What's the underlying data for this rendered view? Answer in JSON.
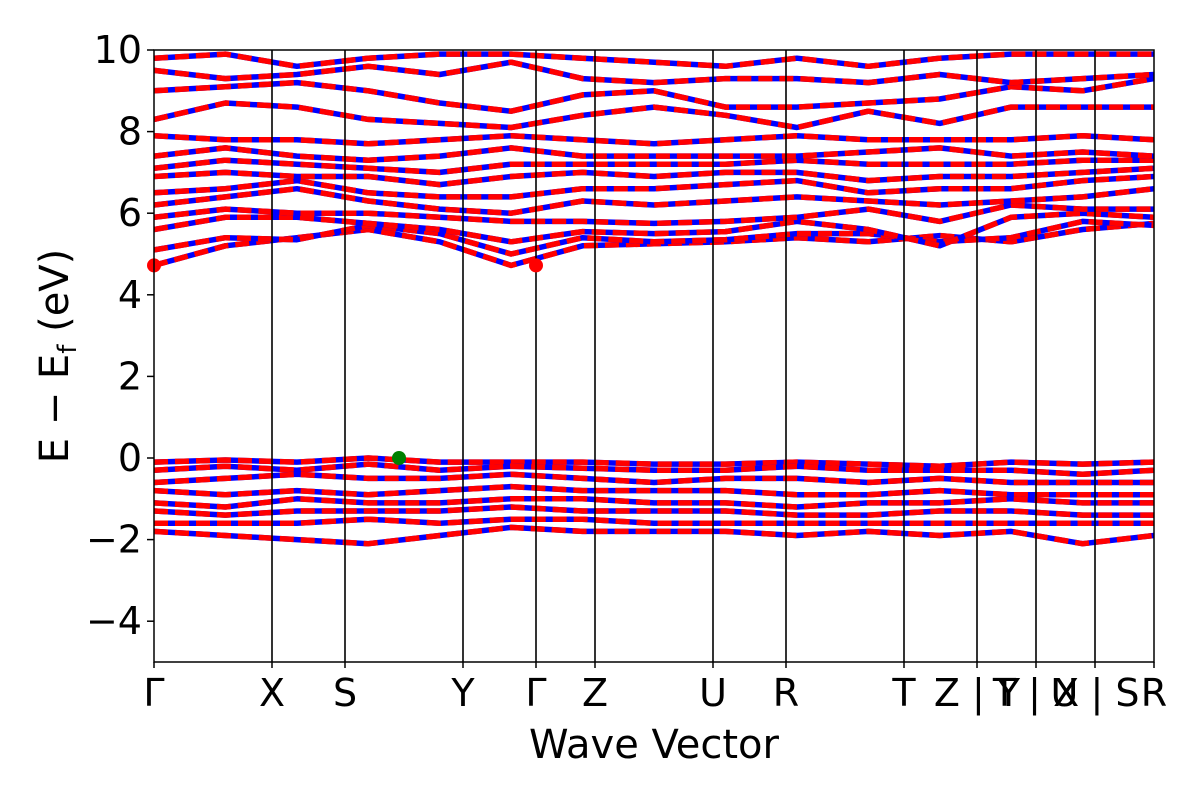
{
  "chart_data": {
    "type": "line",
    "xlabel": "Wave Vector",
    "ylabel": "E − E",
    "ylabel_sub": "f",
    "ylabel_unit": " (eV)",
    "ylim": [
      -5,
      10
    ],
    "yticks": [
      -4,
      -2,
      0,
      2,
      4,
      6,
      8,
      10
    ],
    "ytick_labels": [
      "−4",
      "−2",
      "0",
      "2",
      "4",
      "6",
      "8",
      "10"
    ],
    "grid": false,
    "kpath": [
      {
        "label": "Γ",
        "x": 0.0
      },
      {
        "label": "X",
        "x": 0.118
      },
      {
        "label": "S",
        "x": 0.191
      },
      {
        "label": "Y",
        "x": 0.309
      },
      {
        "label": "Γ",
        "x": 0.382
      },
      {
        "label": "Z",
        "x": 0.441
      },
      {
        "label": "U",
        "x": 0.559
      },
      {
        "label": "R",
        "x": 0.632
      },
      {
        "label": "T",
        "x": 0.75
      },
      {
        "label": "Z | Y",
        "x": 0.823
      },
      {
        "label": "T | X",
        "x": 0.882
      },
      {
        "label": "U | S",
        "x": 0.941
      },
      {
        "label": "R",
        "x": 1.0
      }
    ],
    "colors": {
      "spin_up": "#ff0000",
      "spin_down": "#0000ff",
      "vbm": "#008000",
      "cbm": "#ff0000",
      "kline": "#000000"
    },
    "cbm_points": [
      {
        "x": 0.0,
        "y": 4.72
      },
      {
        "x": 0.382,
        "y": 4.72
      }
    ],
    "vbm_points": [
      {
        "x": 0.245,
        "y": 0.0
      }
    ],
    "bands": [
      {
        "name": "",
        "values": [
          4.72,
          5.2,
          5.4,
          5.6,
          5.3,
          4.72,
          5.2,
          5.25,
          5.3,
          5.4,
          5.3,
          5.45,
          5.3,
          5.6,
          5.75
        ]
      },
      {
        "name": "",
        "values": [
          5.1,
          5.4,
          5.35,
          5.7,
          5.5,
          5.0,
          5.4,
          5.3,
          5.35,
          5.5,
          5.5,
          5.3,
          5.4,
          5.8,
          5.7
        ]
      },
      {
        "name": "",
        "values": [
          5.6,
          5.9,
          5.9,
          5.75,
          5.6,
          5.3,
          5.55,
          5.5,
          5.55,
          5.8,
          5.6,
          5.2,
          5.9,
          6.0,
          5.9
        ]
      },
      {
        "name": "",
        "values": [
          5.9,
          6.1,
          6.0,
          6.0,
          5.9,
          5.8,
          5.8,
          5.75,
          5.8,
          5.9,
          6.1,
          5.8,
          6.2,
          6.1,
          6.1
        ]
      },
      {
        "name": "",
        "values": [
          6.2,
          6.4,
          6.6,
          6.3,
          6.1,
          6.0,
          6.3,
          6.2,
          6.3,
          6.4,
          6.3,
          6.2,
          6.3,
          6.4,
          6.6
        ]
      },
      {
        "name": "",
        "values": [
          6.5,
          6.6,
          6.8,
          6.5,
          6.4,
          6.4,
          6.6,
          6.6,
          6.7,
          6.8,
          6.5,
          6.6,
          6.6,
          6.8,
          6.9
        ]
      },
      {
        "name": "",
        "values": [
          6.9,
          7.0,
          6.9,
          6.9,
          6.7,
          6.9,
          7.0,
          6.9,
          7.0,
          7.0,
          6.8,
          6.9,
          6.9,
          7.0,
          7.1
        ]
      },
      {
        "name": "",
        "values": [
          7.1,
          7.3,
          7.2,
          7.1,
          7.0,
          7.2,
          7.2,
          7.2,
          7.2,
          7.3,
          7.2,
          7.2,
          7.2,
          7.3,
          7.3
        ]
      },
      {
        "name": "",
        "values": [
          7.4,
          7.6,
          7.4,
          7.3,
          7.4,
          7.6,
          7.4,
          7.4,
          7.4,
          7.4,
          7.5,
          7.6,
          7.4,
          7.5,
          7.4
        ]
      },
      {
        "name": "",
        "values": [
          7.9,
          7.8,
          7.8,
          7.7,
          7.8,
          7.9,
          7.8,
          7.7,
          7.8,
          7.9,
          7.8,
          7.8,
          7.8,
          7.9,
          7.8
        ]
      },
      {
        "name": "",
        "values": [
          8.3,
          8.7,
          8.6,
          8.3,
          8.2,
          8.1,
          8.4,
          8.6,
          8.4,
          8.1,
          8.5,
          8.2,
          8.6,
          8.6,
          8.6
        ]
      },
      {
        "name": "",
        "values": [
          9.0,
          9.1,
          9.2,
          9.0,
          8.7,
          8.5,
          8.9,
          9.0,
          8.6,
          8.6,
          8.7,
          8.8,
          9.1,
          9.0,
          9.3
        ]
      },
      {
        "name": "",
        "values": [
          9.5,
          9.3,
          9.4,
          9.6,
          9.4,
          9.7,
          9.3,
          9.2,
          9.3,
          9.3,
          9.2,
          9.4,
          9.2,
          9.3,
          9.4
        ]
      },
      {
        "name": "",
        "values": [
          9.8,
          9.9,
          9.6,
          9.8,
          9.9,
          9.9,
          9.8,
          9.7,
          9.6,
          9.8,
          9.6,
          9.8,
          9.9,
          9.9,
          9.9
        ]
      },
      {
        "name": "",
        "values": [
          -0.1,
          -0.05,
          -0.1,
          0.0,
          -0.1,
          -0.1,
          -0.1,
          -0.15,
          -0.15,
          -0.1,
          -0.15,
          -0.2,
          -0.1,
          -0.15,
          -0.1
        ]
      },
      {
        "name": "",
        "values": [
          -0.3,
          -0.2,
          -0.3,
          -0.15,
          -0.3,
          -0.2,
          -0.25,
          -0.3,
          -0.3,
          -0.2,
          -0.3,
          -0.3,
          -0.3,
          -0.4,
          -0.3
        ]
      },
      {
        "name": "",
        "values": [
          -0.6,
          -0.5,
          -0.4,
          -0.5,
          -0.5,
          -0.4,
          -0.5,
          -0.6,
          -0.5,
          -0.5,
          -0.6,
          -0.5,
          -0.6,
          -0.6,
          -0.6
        ]
      },
      {
        "name": "",
        "values": [
          -0.8,
          -0.9,
          -0.8,
          -0.9,
          -0.8,
          -0.7,
          -0.8,
          -0.8,
          -0.8,
          -0.9,
          -0.9,
          -0.8,
          -0.9,
          -0.9,
          -0.9
        ]
      },
      {
        "name": "",
        "values": [
          -1.1,
          -1.2,
          -1.0,
          -1.1,
          -1.1,
          -1.0,
          -1.0,
          -1.1,
          -1.1,
          -1.2,
          -1.1,
          -1.1,
          -1.0,
          -1.1,
          -1.1
        ]
      },
      {
        "name": "",
        "values": [
          -1.3,
          -1.4,
          -1.3,
          -1.3,
          -1.3,
          -1.2,
          -1.3,
          -1.3,
          -1.3,
          -1.4,
          -1.4,
          -1.3,
          -1.3,
          -1.4,
          -1.4
        ]
      },
      {
        "name": "",
        "values": [
          -1.6,
          -1.6,
          -1.6,
          -1.5,
          -1.6,
          -1.5,
          -1.5,
          -1.6,
          -1.6,
          -1.6,
          -1.6,
          -1.6,
          -1.6,
          -1.6,
          -1.6
        ]
      },
      {
        "name": "",
        "values": [
          -1.8,
          -1.9,
          -2.0,
          -2.1,
          -1.9,
          -1.7,
          -1.8,
          -1.8,
          -1.8,
          -1.9,
          -1.8,
          -1.9,
          -1.8,
          -2.1,
          -1.9
        ]
      }
    ]
  }
}
